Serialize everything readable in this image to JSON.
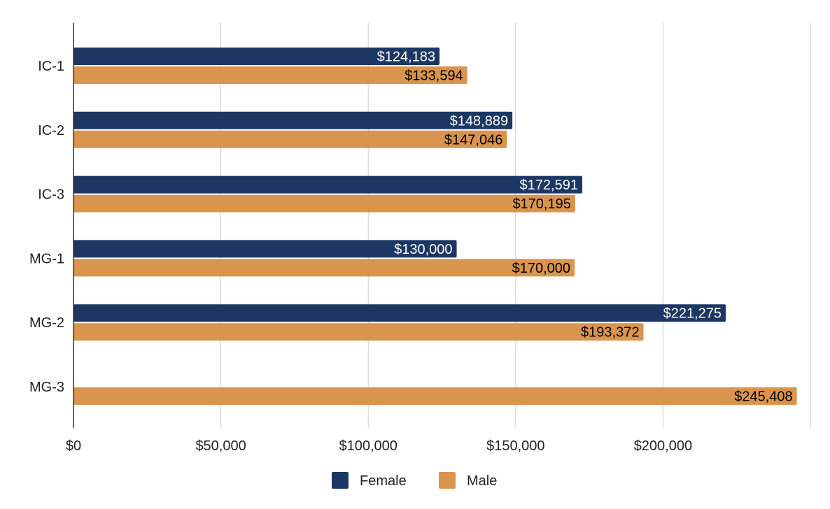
{
  "chart_data": {
    "type": "bar",
    "orientation": "horizontal",
    "categories": [
      "IC-1",
      "IC-2",
      "IC-3",
      "MG-1",
      "MG-2",
      "MG-3"
    ],
    "series": [
      {
        "name": "Female",
        "color": "#1c3763",
        "label_color": "#ffffff",
        "values": [
          124183,
          148889,
          172591,
          130000,
          221275,
          null
        ],
        "labels": [
          "$124,183",
          "$148,889",
          "$172,591",
          "$130,000",
          "$221,275",
          ""
        ]
      },
      {
        "name": "Male",
        "color": "#d9944e",
        "label_color": "#000000",
        "values": [
          133594,
          147046,
          170195,
          170000,
          193372,
          245408
        ],
        "labels": [
          "$133,594",
          "$147,046",
          "$170,195",
          "$170,000",
          "$193,372",
          "$245,408"
        ]
      }
    ],
    "x_ticks": [
      0,
      50000,
      100000,
      150000,
      200000
    ],
    "x_tick_labels": [
      "$0",
      "$50,000",
      "$100,000",
      "$150,000",
      "$200,000"
    ],
    "xlim": [
      0,
      250000
    ],
    "grid": true,
    "legend_position": "bottom"
  }
}
